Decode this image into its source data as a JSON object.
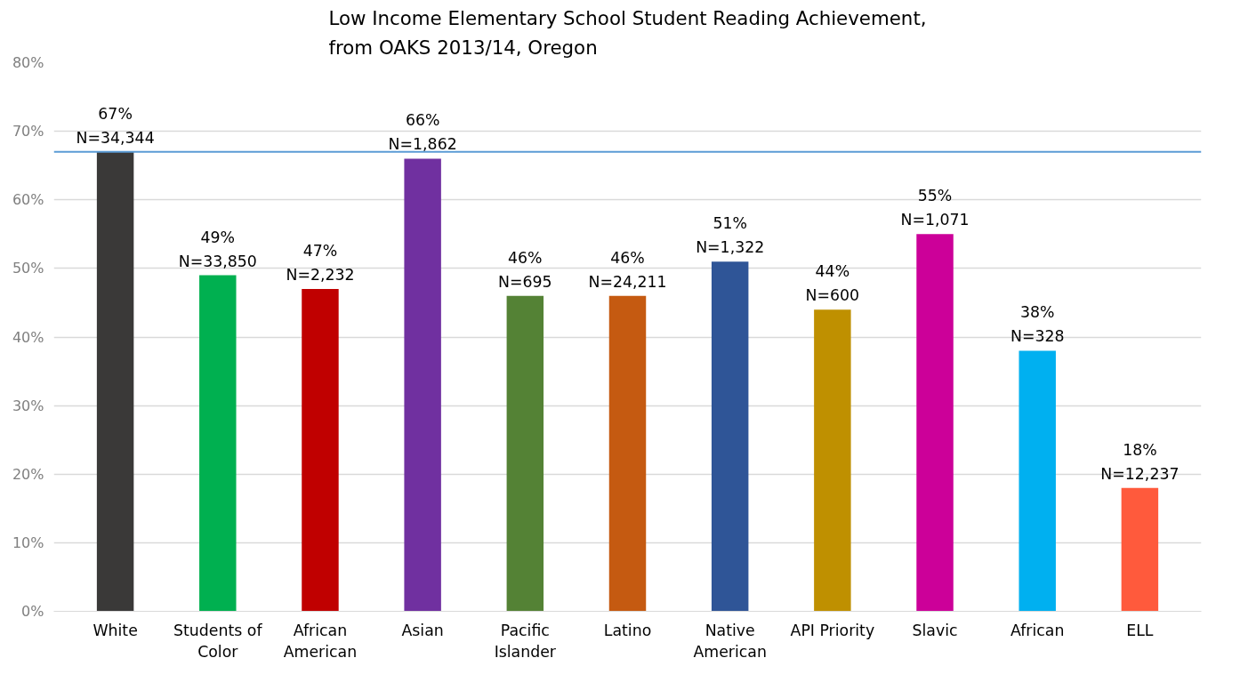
{
  "chart_data": {
    "type": "bar",
    "title": "Low Income Elementary School Student Reading Achievement,\nfrom OAKS 2013/14, Oregon",
    "categories": [
      "White",
      "Students of Color",
      "African American",
      "Asian",
      "Pacific Islander",
      "Latino",
      "Native American",
      "API Priority",
      "Slavic",
      "African",
      "ELL"
    ],
    "values": [
      67,
      49,
      47,
      66,
      46,
      46,
      51,
      44,
      55,
      38,
      18
    ],
    "colors": [
      "#3a3938",
      "#00b050",
      "#c00000",
      "#7030a0",
      "#548235",
      "#c55a11",
      "#2f5597",
      "#bf9000",
      "#cc0099",
      "#00b0f0",
      "#ff5a3c"
    ],
    "value_labels": [
      "67%\nN=34,344",
      "49%\nN=33,850",
      "47%\nN=2,232",
      "66%\nN=1,862",
      "46%\nN=695",
      "46%\nN=24,211",
      "51%\nN=1,322",
      "44%\nN=600",
      "55%\nN=1,071",
      "38%\nN=328",
      "18%\nN=12,237"
    ],
    "ylim": [
      0,
      80
    ],
    "yticks": [
      {
        "value": 0,
        "label": "0%"
      },
      {
        "value": 10,
        "label": "10%"
      },
      {
        "value": 20,
        "label": "20%"
      },
      {
        "value": 30,
        "label": "30%"
      },
      {
        "value": 40,
        "label": "40%"
      },
      {
        "value": 50,
        "label": "50%"
      },
      {
        "value": 60,
        "label": "60%"
      },
      {
        "value": 70,
        "label": "70%"
      },
      {
        "value": 80,
        "label": "80%"
      }
    ],
    "ref_lines": [
      {
        "axis": "y",
        "value": 67,
        "color": "#5b9bd5"
      }
    ],
    "grid": "y"
  }
}
